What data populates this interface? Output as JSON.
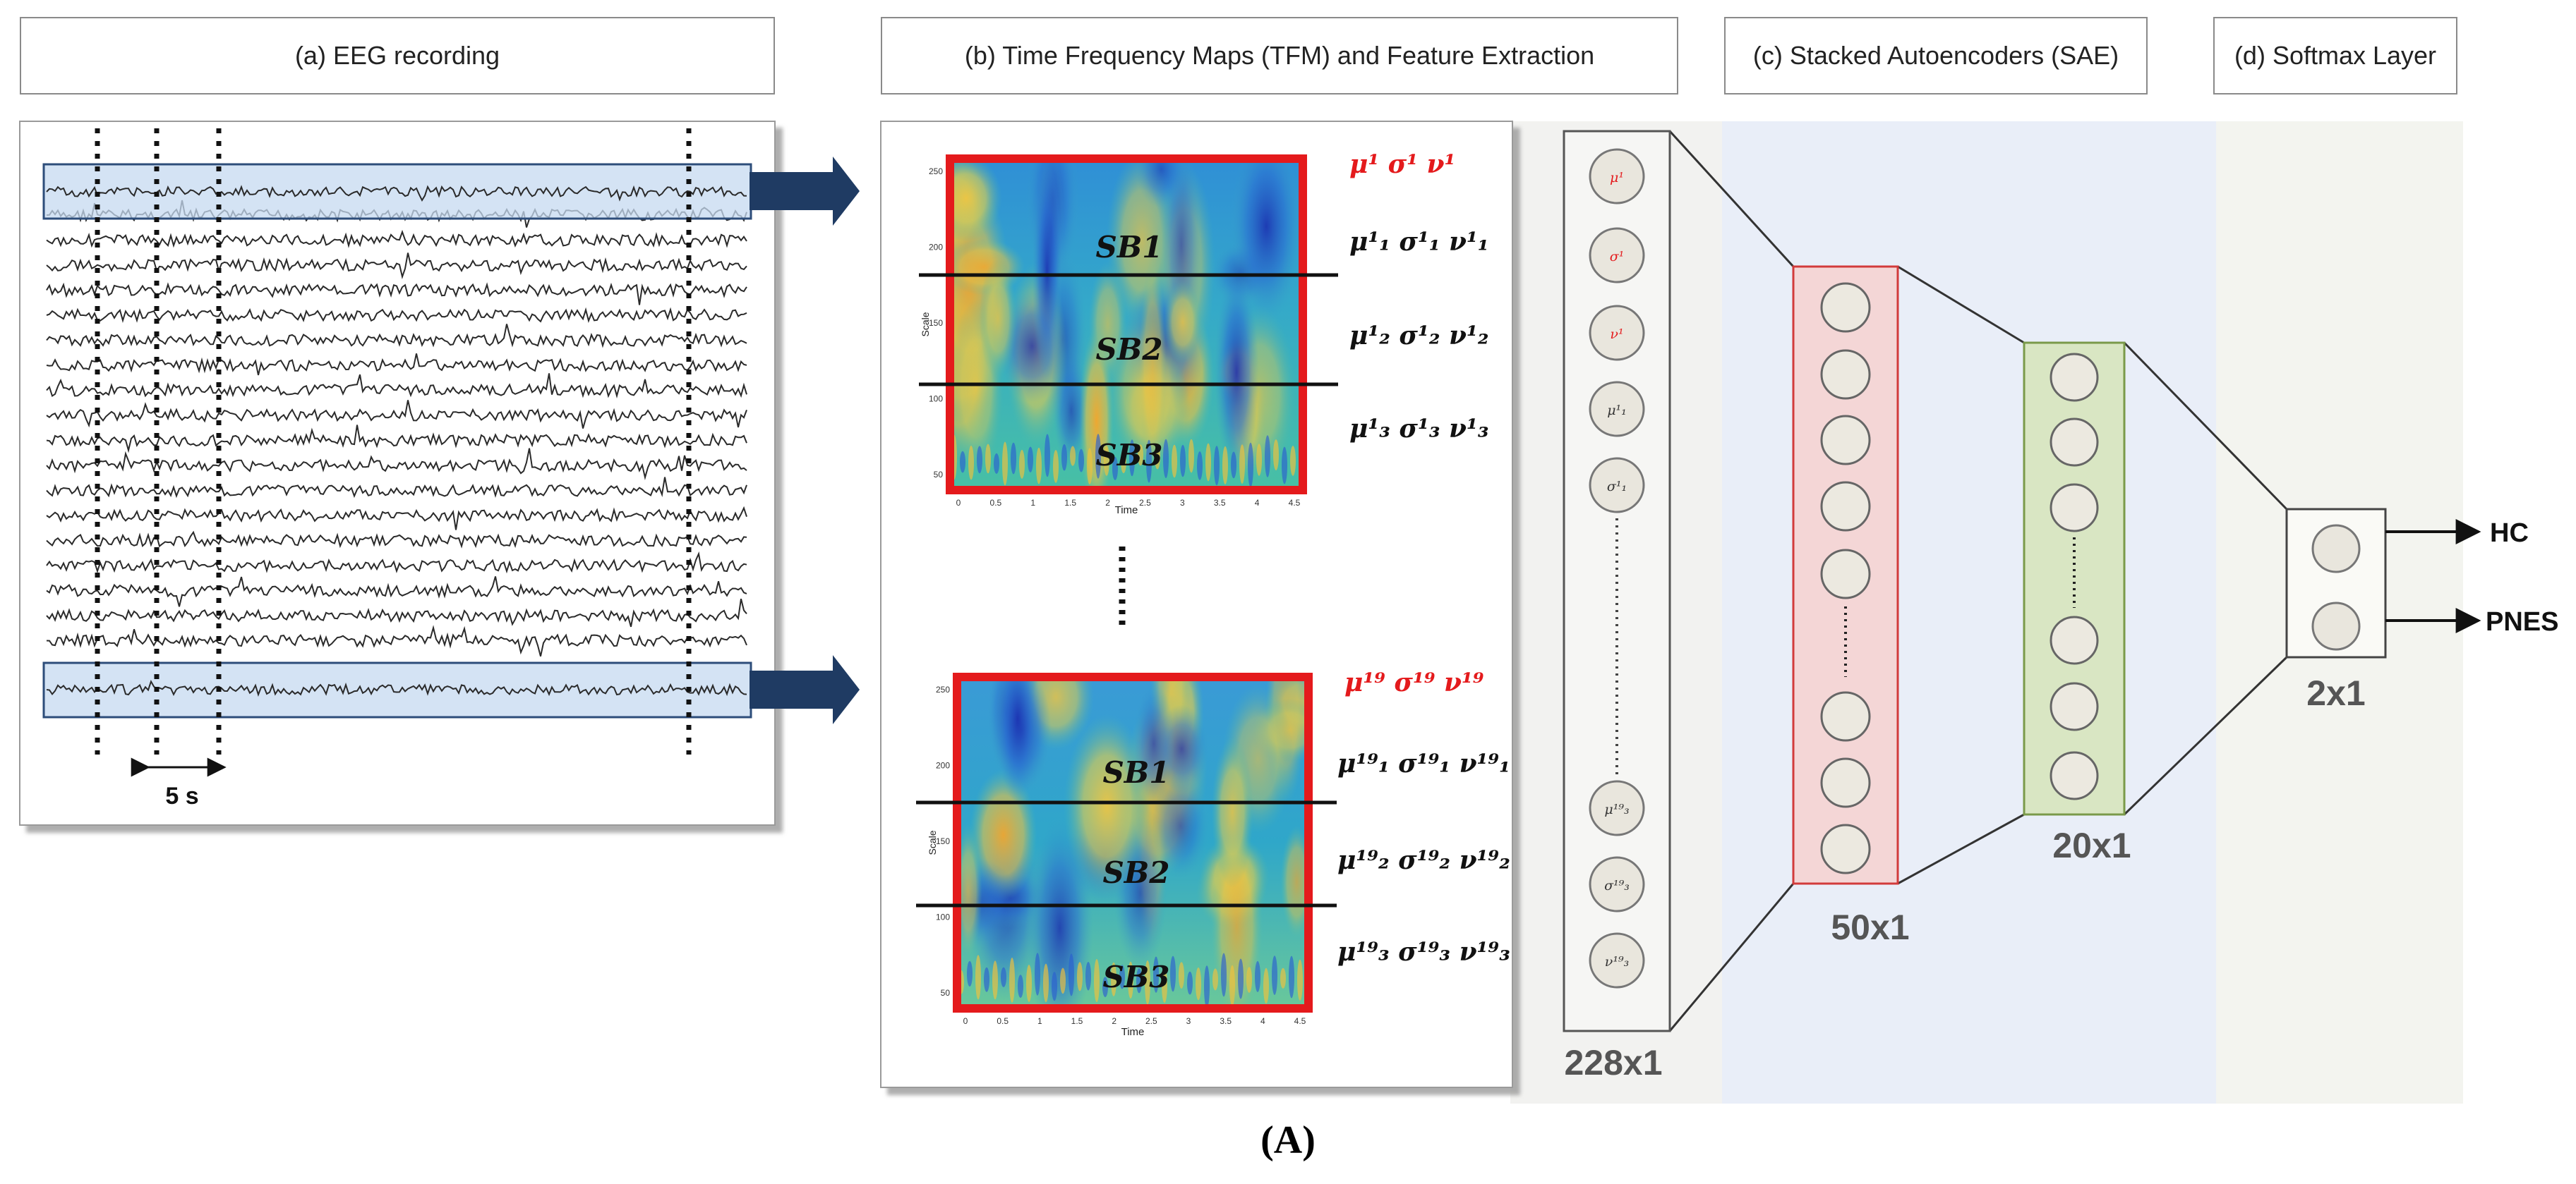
{
  "headers": {
    "eeg": "(a) EEG recording",
    "tfm": "(b)  Time Frequency Maps (TFM) and Feature Extraction",
    "sae": "(c) Stacked Autoencoders (SAE)",
    "softmax": "(d) Softmax Layer"
  },
  "eeg": {
    "interval_label": "5 s"
  },
  "tfm": {
    "y_axis_label": "Scale",
    "x_axis_label": "Time",
    "subbands": [
      "SB1",
      "SB2",
      "SB3"
    ],
    "map1": {
      "global": "μ¹ σ¹ ν¹",
      "sb1": "μ¹₁ σ¹₁ ν¹₁",
      "sb2": "μ¹₂ σ¹₂ ν¹₂",
      "sb3": "μ¹₃ σ¹₃ ν¹₃",
      "y_ticks": [
        "250",
        "200",
        "150",
        "100",
        "50"
      ],
      "x_ticks": [
        "0",
        "0.5",
        "1",
        "1.5",
        "2",
        "2.5",
        "3",
        "3.5",
        "4",
        "4.5"
      ]
    },
    "map19": {
      "global": "μ¹⁹ σ¹⁹ ν¹⁹",
      "sb1": "μ¹⁹₁ σ¹⁹₁ ν¹⁹₁",
      "sb2": "μ¹⁹₂ σ¹⁹₂ ν¹⁹₂",
      "sb3": "μ¹⁹₃ σ¹⁹₃ ν¹⁹₃",
      "y_ticks": [
        "250",
        "200",
        "150",
        "100",
        "50"
      ],
      "x_ticks": [
        "0",
        "0.5",
        "1",
        "1.5",
        "2",
        "2.5",
        "3",
        "3.5",
        "4",
        "4.5"
      ]
    }
  },
  "input_layer": {
    "size_label": "228x1",
    "nodes": [
      "μ¹",
      "σ¹",
      "ν¹",
      "μ¹₁",
      "σ¹₁",
      "μ¹⁹₃",
      "σ¹⁹₃",
      "ν¹⁹₃"
    ]
  },
  "hidden1": {
    "size_label": "50x1"
  },
  "hidden2": {
    "size_label": "20x1"
  },
  "softmax_layer": {
    "size_label": "2x1"
  },
  "outputs": [
    "HC",
    "PNES"
  ],
  "caption": "(A)",
  "colors": {
    "accent_red": "#e41a1c",
    "arrow_navy": "#1f3b63",
    "band_blue": "#c6d9f0",
    "hidden1_fill": "#f4d6d6",
    "hidden2_fill": "#d9e6c3",
    "bg_sae": "#e9eef8",
    "bg_softmax": "#f3f4ef"
  }
}
